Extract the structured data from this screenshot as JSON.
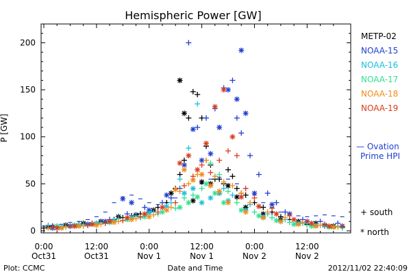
{
  "chart_data": {
    "type": "scatter",
    "title": "Hemispheric Power [GW]",
    "xlabel": "Date and Time",
    "ylabel": "P [GW]",
    "ylim": [
      0,
      220
    ],
    "xlim": [
      0,
      69
    ],
    "x_unit": "hours since 2012-10-31 00:00 UT",
    "grid": false,
    "legend_position": "right",
    "x_ticks": [
      {
        "x": 0,
        "line1": "0:00",
        "line2": "Oct31"
      },
      {
        "x": 12,
        "line1": "12:00",
        "line2": "Oct31"
      },
      {
        "x": 24,
        "line1": "0:00",
        "line2": "Nov 1"
      },
      {
        "x": 36,
        "line1": "12:00",
        "line2": "Nov 1"
      },
      {
        "x": 48,
        "line1": "0:00",
        "line2": "Nov 2"
      },
      {
        "x": 60,
        "line1": "12:00",
        "line2": "Nov 2"
      }
    ],
    "y_ticks": [
      0,
      50,
      100,
      150,
      200
    ],
    "series": [
      {
        "name": "METP-02",
        "color": "#000000",
        "south": [
          [
            0,
            3
          ],
          [
            2,
            5
          ],
          [
            4,
            4
          ],
          [
            6,
            5
          ],
          [
            8,
            7
          ],
          [
            10,
            6
          ],
          [
            12,
            8
          ],
          [
            14,
            9
          ],
          [
            16,
            12
          ],
          [
            18,
            14
          ],
          [
            20,
            16
          ],
          [
            22,
            18
          ],
          [
            24,
            20
          ],
          [
            26,
            25
          ],
          [
            28,
            30
          ],
          [
            30,
            45
          ],
          [
            31,
            60
          ],
          [
            32,
            75
          ],
          [
            33,
            120
          ],
          [
            34,
            148
          ],
          [
            35,
            145
          ],
          [
            36,
            120
          ],
          [
            37,
            90
          ],
          [
            38,
            70
          ],
          [
            39,
            55
          ],
          [
            40,
            55
          ],
          [
            41,
            50
          ],
          [
            42,
            65
          ],
          [
            43,
            58
          ],
          [
            44,
            45
          ],
          [
            45,
            40
          ],
          [
            46,
            38
          ],
          [
            48,
            30
          ],
          [
            50,
            25
          ],
          [
            52,
            20
          ],
          [
            54,
            15
          ],
          [
            56,
            12
          ],
          [
            58,
            9
          ],
          [
            60,
            7
          ],
          [
            62,
            6
          ],
          [
            64,
            5
          ],
          [
            66,
            4
          ],
          [
            68,
            4
          ]
        ],
        "north": [
          [
            1,
            4
          ],
          [
            5,
            6
          ],
          [
            9,
            8
          ],
          [
            13,
            10
          ],
          [
            17,
            15
          ],
          [
            21,
            17
          ],
          [
            25,
            22
          ],
          [
            29,
            40
          ],
          [
            31,
            160
          ],
          [
            32,
            125
          ],
          [
            34,
            32
          ],
          [
            36,
            52
          ],
          [
            38,
            50
          ],
          [
            40,
            40
          ],
          [
            42,
            48
          ],
          [
            44,
            36
          ],
          [
            46,
            25
          ],
          [
            50,
            18
          ],
          [
            54,
            12
          ],
          [
            58,
            10
          ],
          [
            62,
            8
          ],
          [
            66,
            5
          ]
        ]
      },
      {
        "name": "NOAA-15",
        "color": "#1f3fd0",
        "south": [
          [
            3,
            5
          ],
          [
            7,
            6
          ],
          [
            11,
            8
          ],
          [
            15,
            12
          ],
          [
            19,
            18
          ],
          [
            23,
            25
          ],
          [
            27,
            30
          ],
          [
            29,
            35
          ],
          [
            31,
            45
          ],
          [
            33,
            200
          ],
          [
            35,
            110
          ],
          [
            37,
            120
          ],
          [
            39,
            130
          ],
          [
            41,
            152
          ],
          [
            43,
            160
          ],
          [
            44,
            120
          ],
          [
            45,
            104
          ],
          [
            47,
            80
          ],
          [
            49,
            60
          ],
          [
            51,
            40
          ],
          [
            53,
            30
          ],
          [
            55,
            20
          ],
          [
            59,
            12
          ],
          [
            63,
            10
          ],
          [
            67,
            8
          ]
        ],
        "north": [
          [
            2,
            3
          ],
          [
            6,
            5
          ],
          [
            10,
            7
          ],
          [
            14,
            10
          ],
          [
            18,
            34
          ],
          [
            20,
            30
          ],
          [
            24,
            22
          ],
          [
            28,
            38
          ],
          [
            32,
            70
          ],
          [
            34,
            108
          ],
          [
            36,
            75
          ],
          [
            38,
            82
          ],
          [
            40,
            110
          ],
          [
            42,
            150
          ],
          [
            44,
            140
          ],
          [
            45,
            192
          ],
          [
            46,
            125
          ],
          [
            48,
            40
          ],
          [
            52,
            28
          ],
          [
            56,
            18
          ],
          [
            60,
            10
          ],
          [
            64,
            6
          ],
          [
            68,
            5
          ]
        ]
      },
      {
        "name": "NOAA-16",
        "color": "#18c0dc",
        "south": [
          [
            1,
            6
          ],
          [
            5,
            5
          ],
          [
            9,
            7
          ],
          [
            13,
            9
          ],
          [
            17,
            13
          ],
          [
            21,
            16
          ],
          [
            25,
            20
          ],
          [
            29,
            30
          ],
          [
            31,
            55
          ],
          [
            33,
            88
          ],
          [
            35,
            135
          ],
          [
            37,
            75
          ],
          [
            39,
            58
          ],
          [
            41,
            45
          ],
          [
            43,
            38
          ],
          [
            47,
            28
          ],
          [
            51,
            18
          ],
          [
            55,
            12
          ],
          [
            59,
            8
          ],
          [
            63,
            6
          ],
          [
            67,
            5
          ]
        ],
        "north": [
          [
            4,
            4
          ],
          [
            8,
            6
          ],
          [
            12,
            8
          ],
          [
            16,
            11
          ],
          [
            20,
            14
          ],
          [
            24,
            19
          ],
          [
            28,
            26
          ],
          [
            32,
            40
          ],
          [
            34,
            45
          ],
          [
            36,
            30
          ],
          [
            38,
            35
          ],
          [
            40,
            40
          ],
          [
            42,
            32
          ],
          [
            46,
            22
          ],
          [
            50,
            15
          ],
          [
            54,
            10
          ],
          [
            58,
            8
          ],
          [
            62,
            6
          ],
          [
            66,
            4
          ]
        ]
      },
      {
        "name": "NOAA-17",
        "color": "#30e090",
        "south": [
          [
            2,
            4
          ],
          [
            6,
            5
          ],
          [
            10,
            6
          ],
          [
            14,
            8
          ],
          [
            18,
            11
          ],
          [
            22,
            14
          ],
          [
            26,
            18
          ],
          [
            30,
            24
          ],
          [
            32,
            35
          ],
          [
            34,
            38
          ],
          [
            36,
            45
          ],
          [
            38,
            72
          ],
          [
            40,
            60
          ],
          [
            42,
            42
          ],
          [
            44,
            30
          ],
          [
            48,
            20
          ],
          [
            52,
            14
          ],
          [
            56,
            9
          ],
          [
            60,
            6
          ],
          [
            64,
            5
          ],
          [
            68,
            3
          ]
        ],
        "north": [
          [
            3,
            5
          ],
          [
            7,
            6
          ],
          [
            11,
            7
          ],
          [
            15,
            9
          ],
          [
            19,
            12
          ],
          [
            23,
            15
          ],
          [
            27,
            20
          ],
          [
            31,
            25
          ],
          [
            33,
            30
          ],
          [
            35,
            36
          ],
          [
            37,
            50
          ],
          [
            39,
            40
          ],
          [
            41,
            30
          ],
          [
            45,
            22
          ],
          [
            49,
            16
          ],
          [
            53,
            11
          ],
          [
            57,
            7
          ],
          [
            61,
            5
          ],
          [
            65,
            4
          ]
        ]
      },
      {
        "name": "NOAA-18",
        "color": "#f08c18",
        "south": [
          [
            1,
            3
          ],
          [
            5,
            4
          ],
          [
            9,
            5
          ],
          [
            13,
            7
          ],
          [
            17,
            10
          ],
          [
            21,
            13
          ],
          [
            25,
            17
          ],
          [
            29,
            25
          ],
          [
            31,
            42
          ],
          [
            33,
            50
          ],
          [
            35,
            60
          ],
          [
            37,
            75
          ],
          [
            39,
            58
          ],
          [
            41,
            52
          ],
          [
            43,
            48
          ],
          [
            45,
            40
          ],
          [
            47,
            30
          ],
          [
            51,
            20
          ],
          [
            55,
            14
          ],
          [
            59,
            9
          ],
          [
            63,
            6
          ],
          [
            67,
            4
          ]
        ],
        "north": [
          [
            4,
            3
          ],
          [
            8,
            5
          ],
          [
            12,
            6
          ],
          [
            16,
            9
          ],
          [
            20,
            12
          ],
          [
            24,
            15
          ],
          [
            28,
            22
          ],
          [
            30,
            44
          ],
          [
            32,
            65
          ],
          [
            34,
            54
          ],
          [
            36,
            60
          ],
          [
            38,
            48
          ],
          [
            40,
            42
          ],
          [
            42,
            30
          ],
          [
            46,
            20
          ],
          [
            50,
            14
          ],
          [
            54,
            10
          ],
          [
            58,
            7
          ],
          [
            62,
            5
          ],
          [
            66,
            4
          ]
        ]
      },
      {
        "name": "NOAA-19",
        "color": "#d83c1c",
        "south": [
          [
            2,
            4
          ],
          [
            6,
            5
          ],
          [
            10,
            6
          ],
          [
            14,
            8
          ],
          [
            18,
            11
          ],
          [
            22,
            15
          ],
          [
            26,
            20
          ],
          [
            30,
            30
          ],
          [
            32,
            48
          ],
          [
            34,
            58
          ],
          [
            36,
            70
          ],
          [
            38,
            62
          ],
          [
            40,
            75
          ],
          [
            42,
            85
          ],
          [
            44,
            80
          ],
          [
            46,
            45
          ],
          [
            48,
            35
          ],
          [
            52,
            24
          ],
          [
            56,
            16
          ],
          [
            60,
            10
          ],
          [
            64,
            7
          ],
          [
            68,
            5
          ]
        ],
        "north": [
          [
            3,
            3
          ],
          [
            7,
            5
          ],
          [
            11,
            7
          ],
          [
            15,
            10
          ],
          [
            19,
            14
          ],
          [
            23,
            18
          ],
          [
            27,
            25
          ],
          [
            31,
            72
          ],
          [
            33,
            80
          ],
          [
            35,
            65
          ],
          [
            37,
            93
          ],
          [
            39,
            132
          ],
          [
            41,
            150
          ],
          [
            43,
            100
          ],
          [
            45,
            36
          ],
          [
            49,
            26
          ],
          [
            53,
            18
          ],
          [
            57,
            12
          ],
          [
            61,
            8
          ],
          [
            65,
            5
          ]
        ]
      },
      {
        "name": "— Ovation Prime HPI",
        "color": "#1f3fd0",
        "model": [
          [
            0,
            5
          ],
          [
            2,
            6
          ],
          [
            4,
            7
          ],
          [
            6,
            9
          ],
          [
            8,
            10
          ],
          [
            10,
            12
          ],
          [
            12,
            15
          ],
          [
            14,
            20
          ],
          [
            16,
            30
          ],
          [
            18,
            36
          ],
          [
            20,
            38
          ],
          [
            22,
            34
          ],
          [
            24,
            30
          ],
          [
            26,
            28
          ],
          [
            28,
            30
          ],
          [
            30,
            35
          ],
          [
            32,
            40
          ],
          [
            34,
            45
          ],
          [
            36,
            50
          ],
          [
            38,
            55
          ],
          [
            40,
            57
          ],
          [
            42,
            55
          ],
          [
            44,
            50
          ],
          [
            46,
            45
          ],
          [
            48,
            38
          ],
          [
            50,
            30
          ],
          [
            52,
            25
          ],
          [
            54,
            20
          ],
          [
            56,
            18
          ],
          [
            58,
            16
          ],
          [
            60,
            15
          ],
          [
            62,
            16
          ],
          [
            64,
            17
          ],
          [
            66,
            16
          ],
          [
            68,
            15
          ]
        ]
      }
    ],
    "marker_key": {
      "south": "+ south",
      "north": "* north"
    }
  },
  "legend_entries": [
    {
      "label": "METP-02",
      "color": "#000000"
    },
    {
      "label": "NOAA-15",
      "color": "#1f3fd0"
    },
    {
      "label": "NOAA-16",
      "color": "#18c0dc"
    },
    {
      "label": "NOAA-17",
      "color": "#30e090"
    },
    {
      "label": "NOAA-18",
      "color": "#f08c18"
    },
    {
      "label": "NOAA-19",
      "color": "#d83c1c"
    }
  ],
  "model_legend": {
    "line1": "— Ovation",
    "line2": "Prime HPI",
    "color": "#1f3fd0"
  },
  "marker_legend": {
    "south": "+ south",
    "north": "* north"
  },
  "footer": {
    "left": "Plot: CCMC",
    "center": "Date and Time",
    "right": "2012/11/02 22:40:09"
  }
}
